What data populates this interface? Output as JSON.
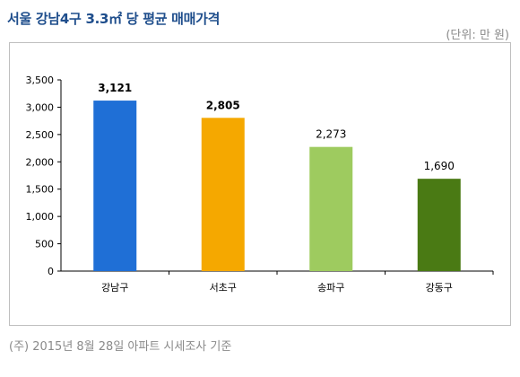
{
  "title": "서울 강남4구 3.3㎡ 당 평균 매매가격",
  "unit_note": "(단위: 만 원)",
  "source_note": "(주) 2015년 8월 28일 아파트 시세조사 기준",
  "chart_data": {
    "type": "bar",
    "categories": [
      "강남구",
      "서초구",
      "송파구",
      "강동구"
    ],
    "values": [
      3121,
      2805,
      2273,
      1690
    ],
    "value_labels": [
      "3,121",
      "2,805",
      "2,273",
      "1,690"
    ],
    "bold_labels": [
      true,
      true,
      false,
      false
    ],
    "colors": [
      "#1f6fd6",
      "#f5a800",
      "#9ecb5f",
      "#4a7a14"
    ],
    "ylim": [
      0,
      3500
    ],
    "yticks": [
      0,
      500,
      1000,
      1500,
      2000,
      2500,
      3000,
      3500
    ],
    "ytick_labels": [
      "0",
      "500",
      "1,000",
      "1,500",
      "2,000",
      "2,500",
      "3,000",
      "3,500"
    ],
    "grid": false,
    "legend": "none"
  }
}
